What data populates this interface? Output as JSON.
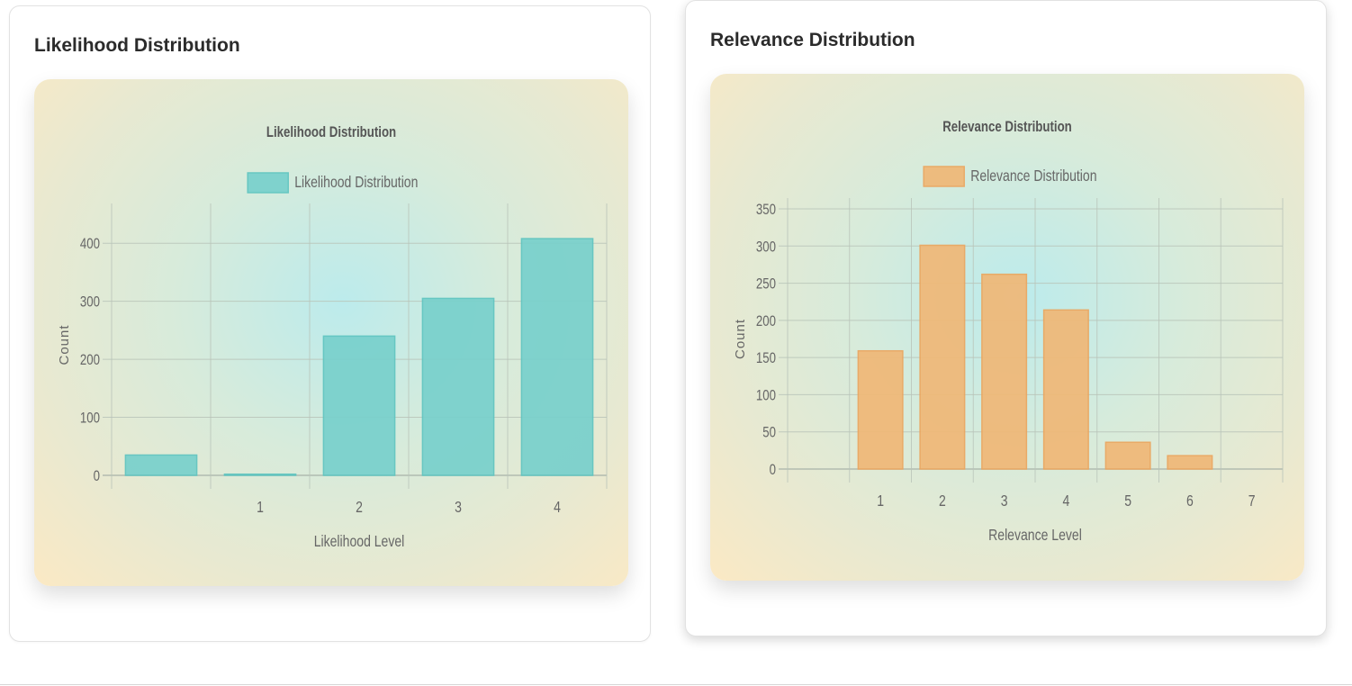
{
  "cards": [
    {
      "heading": "Likelihood Distribution",
      "chart_data": {
        "type": "bar",
        "title": "Likelihood Distribution",
        "legend": "Likelihood Distribution",
        "legend_position": "top-center",
        "xlabel": "Likelihood Level",
        "ylabel": "Count",
        "categories": [
          "",
          "1",
          "2",
          "3",
          "4"
        ],
        "values": [
          35,
          2,
          240,
          305,
          408
        ],
        "ylim": [
          0,
          450
        ],
        "yticks": [
          0,
          100,
          200,
          300,
          400
        ],
        "grid": true,
        "bar_color": "#78d0cc",
        "bar_border": "#5ec4c0"
      }
    },
    {
      "heading": "Relevance Distribution",
      "chart_data": {
        "type": "bar",
        "title": "Relevance Distribution",
        "legend": "Relevance Distribution",
        "legend_position": "top-center",
        "xlabel": "Relevance Level",
        "ylabel": "Count",
        "categories": [
          "",
          "1",
          "2",
          "3",
          "4",
          "5",
          "6",
          "7"
        ],
        "values": [
          0,
          159,
          301,
          262,
          214,
          36,
          18,
          0
        ],
        "ylim": [
          0,
          350
        ],
        "yticks": [
          0,
          50,
          100,
          150,
          200,
          250,
          300,
          350
        ],
        "grid": true,
        "bar_color": "#f0b877",
        "bar_border": "#eba55e"
      }
    }
  ]
}
